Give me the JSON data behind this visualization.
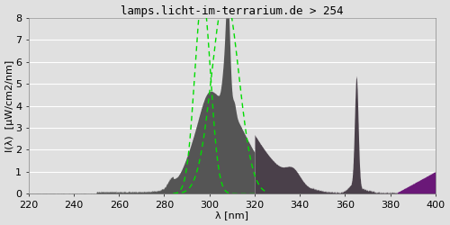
{
  "title": "lamps.licht-im-terrarium.de > 254",
  "xlabel": "λ [nm]",
  "ylabel": "I(λ)  [µW/cm2/nm]",
  "xlim": [
    220,
    400
  ],
  "ylim": [
    0,
    8.0
  ],
  "yticks": [
    0.0,
    1.0,
    2.0,
    3.0,
    4.0,
    5.0,
    6.0,
    7.0,
    8.0
  ],
  "xticks": [
    220,
    240,
    260,
    280,
    300,
    320,
    340,
    360,
    380,
    400
  ],
  "bg_color": "#e0e0e0",
  "grid_color": "#ffffff",
  "color_uvb": "#555555",
  "color_uva": "#4a404a",
  "color_vis": "#6a1878",
  "green_line_color": "#00dd00",
  "title_fontsize": 9,
  "axis_fontsize": 8,
  "tick_fontsize": 8
}
